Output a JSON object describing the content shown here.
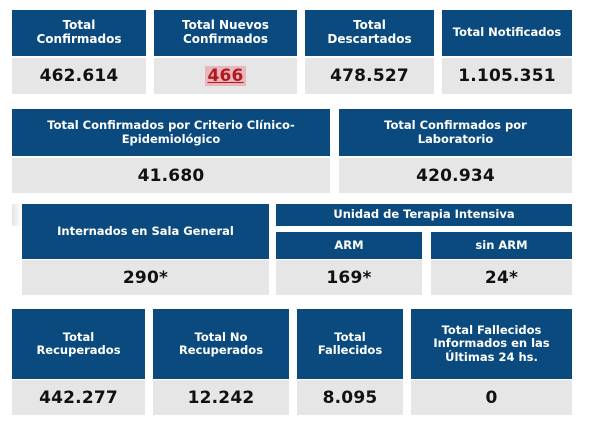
{
  "row1": [
    {
      "label": "Total\nConfirmados",
      "value": "462.614"
    },
    {
      "label": "Total Nuevos\nConfirmados",
      "value": "466"
    },
    {
      "label": "Total\nDescartados",
      "value": "478.527"
    },
    {
      "label": "Total Notificados",
      "value": "1.105.351"
    }
  ],
  "row2": [
    {
      "label": "Total Confirmados por Criterio Clínico-\nEpidemiológico",
      "value": "41.680"
    },
    {
      "label": "Total Confirmados por\nLaboratorio",
      "value": "420.934"
    }
  ],
  "row3": {
    "sala_general": {
      "label": "Internados en Sala General",
      "value": "290*"
    },
    "uti": {
      "title": "Unidad de Terapia Intensiva",
      "arm": {
        "label": "ARM",
        "value": "169*"
      },
      "sin_arm": {
        "label": "sin ARM",
        "value": "24*"
      }
    }
  },
  "row4": [
    {
      "label": "Total\nRecuperados",
      "value": "442.277"
    },
    {
      "label": "Total No\nRecuperados",
      "value": "12.242"
    },
    {
      "label": "Total\nFallecidos",
      "value": "8.095"
    },
    {
      "label": "Total Fallecidos\nInformados en las\nÚltimas 24 hs.",
      "value": "0"
    }
  ],
  "colors": {
    "header_blue": "#0b4a7e",
    "value_gray": "#e6e6e6",
    "highlight_text": "#b0191e"
  }
}
